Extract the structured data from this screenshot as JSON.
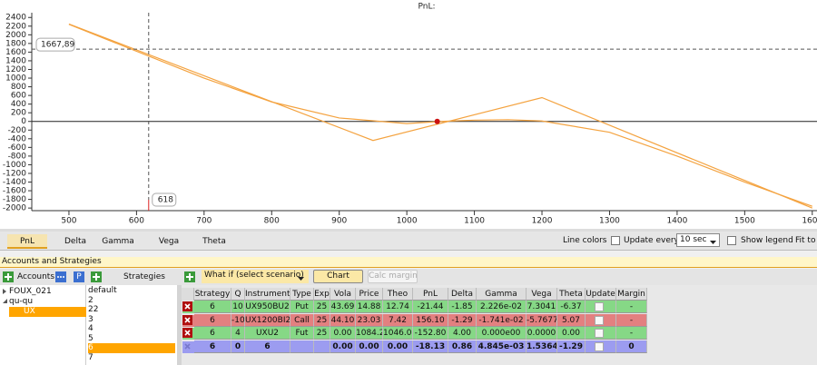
{
  "chart_data": {
    "type": "line",
    "title": "PnL:",
    "series": [
      {
        "color": "#f4a340",
        "x": [
          500,
          950,
          1200,
          1600
        ],
        "values": [
          2250,
          -440,
          550,
          -2000
        ]
      },
      {
        "color": "#f4a340",
        "x": [
          500,
          600,
          700,
          800,
          900,
          1000,
          1050,
          1100,
          1150,
          1200,
          1300,
          1400,
          1500,
          1600
        ],
        "values": [
          2240,
          1620,
          1000,
          450,
          80,
          -50,
          0,
          30,
          40,
          10,
          -250,
          -800,
          -1400,
          -1960
        ]
      }
    ],
    "marker": {
      "x": 1045,
      "y": 0,
      "color": "#cc1111"
    },
    "baseline": 0,
    "crosshair": {
      "x": {
        "value": 618,
        "label": "618"
      },
      "y": {
        "value": 1667.89,
        "label": "1667,89"
      }
    },
    "xlim": [
      445,
      1607
    ],
    "ylim": [
      -2060,
      2510
    ],
    "xticks": [
      500,
      600,
      700,
      800,
      900,
      1000,
      1100,
      1200,
      1300,
      1400,
      1500,
      1600
    ],
    "yticks": [
      2400,
      2200,
      2000,
      1800,
      1600,
      1400,
      1200,
      1000,
      800,
      600,
      400,
      200,
      0,
      -200,
      -400,
      -600,
      -800,
      -1000,
      -1200,
      -1400,
      -1600,
      -1800,
      -2000
    ]
  },
  "tabs": {
    "items": [
      "PnL",
      "Delta",
      "Gamma",
      "Vega",
      "Theta"
    ],
    "selected": 0
  },
  "toolbar": {
    "line_colors": "Line colors",
    "update_every": "Update every",
    "interval": "10 sec",
    "show_legend": "Show legend",
    "fit_to": "Fit to"
  },
  "panel": {
    "title": "Accounts and Strategies",
    "accounts": "Accounts",
    "p_button": "P",
    "strategies": "Strategies",
    "what_if": "What if (select scenario)",
    "chart_button": "Chart",
    "calc_margin": "Calc margin"
  },
  "tree": [
    "FOUX_021",
    "qu-qu",
    "UX"
  ],
  "strategies_list": {
    "items": [
      "default",
      "2",
      "22",
      "3",
      "4",
      "5",
      "6",
      "7"
    ],
    "selected": 6
  },
  "table": {
    "columns": [
      "Strategy",
      "Q",
      "Instrument",
      "Type",
      "Exp",
      "Vola",
      "Price",
      "Theo",
      "PnL",
      "Delta",
      "Gamma",
      "Vega",
      "Theta",
      "Update",
      "Margin"
    ],
    "rows": [
      [
        "6",
        "10",
        "UX950BU2",
        "Put",
        "25",
        "43.69",
        "14.88",
        "12.74",
        "-21.44",
        "-1.85",
        "2.226e-02",
        "7.3041",
        "-6.37",
        null,
        "-"
      ],
      [
        "6",
        "-10",
        "UX1200BI2",
        "Call",
        "25",
        "44.10",
        "23.03",
        "7.42",
        "156.10",
        "-1.29",
        "-1.741e-02",
        "-5.7677",
        "5.07",
        null,
        "-"
      ],
      [
        "6",
        "4",
        "UXU2",
        "Fut",
        "25",
        "0.00",
        "1084.20",
        "1046.00",
        "-152.80",
        "4.00",
        "0.000e00",
        "0.0000",
        "0.00",
        null,
        "-"
      ],
      [
        "6",
        "0",
        "6",
        null,
        null,
        "0.00",
        "0.00",
        "0.00",
        "-18.13",
        "0.86",
        "4.845e-03",
        "1.5364",
        "-1.29",
        null,
        "0"
      ]
    ]
  }
}
